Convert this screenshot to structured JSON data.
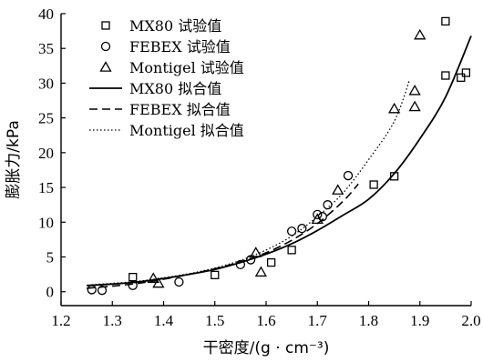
{
  "chart_data": {
    "type": "scatter",
    "xlabel": "干密度/(g · cm⁻³)",
    "ylabel": "膨胀力/kPa",
    "xlim": [
      1.2,
      2.0
    ],
    "ylim": [
      -2,
      40
    ],
    "xticks": [
      "1.2",
      "1.3",
      "1.4",
      "1.5",
      "1.6",
      "1.7",
      "1.8",
      "1.9",
      "2.0"
    ],
    "xtick_values": [
      1.2,
      1.3,
      1.4,
      1.5,
      1.6,
      1.7,
      1.8,
      1.9,
      2.0
    ],
    "yticks": [
      "0",
      "5",
      "10",
      "15",
      "20",
      "25",
      "30",
      "35",
      "40"
    ],
    "ytick_values": [
      0,
      5,
      10,
      15,
      20,
      25,
      30,
      35,
      40
    ],
    "grid": false,
    "legend_position": "top-left",
    "series": [
      {
        "name": "MX80 试验值",
        "kind": "points",
        "marker": "square",
        "points": [
          [
            1.34,
            2.1
          ],
          [
            1.5,
            2.4
          ],
          [
            1.61,
            4.2
          ],
          [
            1.65,
            6.0
          ],
          [
            1.81,
            15.4
          ],
          [
            1.85,
            16.6
          ],
          [
            1.95,
            38.9
          ],
          [
            1.95,
            31.1
          ],
          [
            1.98,
            30.8
          ],
          [
            1.99,
            31.5
          ]
        ]
      },
      {
        "name": "FEBEX 试验值",
        "kind": "points",
        "marker": "circle",
        "points": [
          [
            1.26,
            0.3
          ],
          [
            1.28,
            0.2
          ],
          [
            1.34,
            0.9
          ],
          [
            1.43,
            1.4
          ],
          [
            1.55,
            3.9
          ],
          [
            1.57,
            4.6
          ],
          [
            1.65,
            8.7
          ],
          [
            1.67,
            9.1
          ],
          [
            1.7,
            11.1
          ],
          [
            1.71,
            10.8
          ],
          [
            1.72,
            12.5
          ],
          [
            1.76,
            16.7
          ]
        ]
      },
      {
        "name": "Montigel 试验值",
        "kind": "points",
        "marker": "triangle",
        "points": [
          [
            1.38,
            1.9
          ],
          [
            1.39,
            1.2
          ],
          [
            1.58,
            5.6
          ],
          [
            1.59,
            2.8
          ],
          [
            1.7,
            10.4
          ],
          [
            1.74,
            14.6
          ],
          [
            1.85,
            26.3
          ],
          [
            1.89,
            28.9
          ],
          [
            1.89,
            26.6
          ],
          [
            1.9,
            36.9
          ]
        ]
      },
      {
        "name": "MX80 拟合值",
        "kind": "line",
        "dash": "solid",
        "points": [
          [
            1.25,
            0.9
          ],
          [
            1.3,
            1.1
          ],
          [
            1.35,
            1.4
          ],
          [
            1.4,
            1.9
          ],
          [
            1.45,
            2.5
          ],
          [
            1.5,
            3.2
          ],
          [
            1.55,
            4.2
          ],
          [
            1.6,
            5.4
          ],
          [
            1.65,
            6.9
          ],
          [
            1.7,
            8.8
          ],
          [
            1.75,
            11.0
          ],
          [
            1.8,
            13.3
          ],
          [
            1.85,
            17.0
          ],
          [
            1.9,
            22.0
          ],
          [
            1.95,
            28.0
          ],
          [
            2.0,
            36.8
          ]
        ]
      },
      {
        "name": "FEBEX 拟合值",
        "kind": "line",
        "dash": "dashed",
        "points": [
          [
            1.25,
            0.5
          ],
          [
            1.3,
            0.8
          ],
          [
            1.35,
            1.2
          ],
          [
            1.4,
            1.8
          ],
          [
            1.45,
            2.5
          ],
          [
            1.5,
            3.3
          ],
          [
            1.55,
            4.3
          ],
          [
            1.6,
            5.6
          ],
          [
            1.65,
            7.4
          ],
          [
            1.7,
            9.8
          ],
          [
            1.75,
            13.0
          ],
          [
            1.78,
            15.5
          ]
        ]
      },
      {
        "name": "Montigel 拟合值",
        "kind": "line",
        "dash": "dotted",
        "points": [
          [
            1.26,
            1.0
          ],
          [
            1.3,
            1.2
          ],
          [
            1.35,
            1.5
          ],
          [
            1.4,
            2.0
          ],
          [
            1.45,
            2.6
          ],
          [
            1.5,
            3.4
          ],
          [
            1.55,
            4.5
          ],
          [
            1.6,
            6.0
          ],
          [
            1.65,
            8.0
          ],
          [
            1.7,
            10.8
          ],
          [
            1.75,
            14.2
          ],
          [
            1.8,
            19.0
          ],
          [
            1.85,
            24.5
          ],
          [
            1.88,
            30.5
          ]
        ]
      }
    ]
  }
}
